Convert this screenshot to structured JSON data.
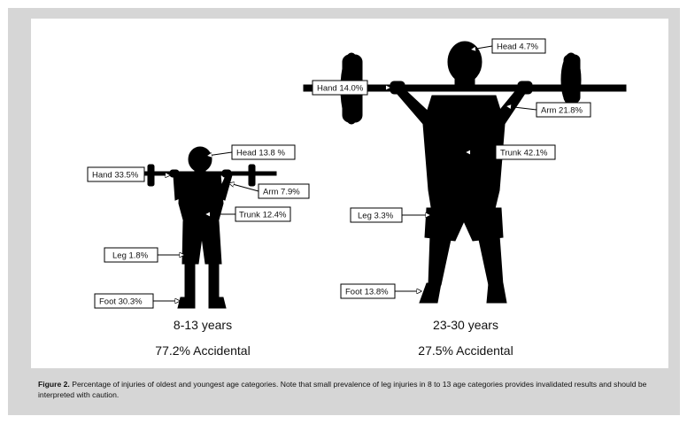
{
  "figure": {
    "young": {
      "age_label": "8-13 years",
      "accidental_label": "77.2% Accidental",
      "labels": {
        "head": "Head 13.8 %",
        "hand": "Hand 33.5%",
        "arm": "Arm 7.9%",
        "trunk": "Trunk 12.4%",
        "leg": "Leg 1.8%",
        "foot": "Foot 30.3%"
      }
    },
    "old": {
      "age_label": "23-30 years",
      "accidental_label": "27.5% Accidental",
      "labels": {
        "head": "Head 4.7%",
        "hand": "Hand 14.0%",
        "arm": "Arm 21.8%",
        "trunk": "Trunk 42.1%",
        "leg": "Leg 3.3%",
        "foot": "Foot 13.8%"
      }
    },
    "caption": {
      "label": "Figure 2.",
      "text": "Percentage of injuries of oldest and youngest age categories. Note that small prevalence of leg injuries in 8 to 13 age categories provides invalidated results and should be interpreted with caution."
    }
  }
}
